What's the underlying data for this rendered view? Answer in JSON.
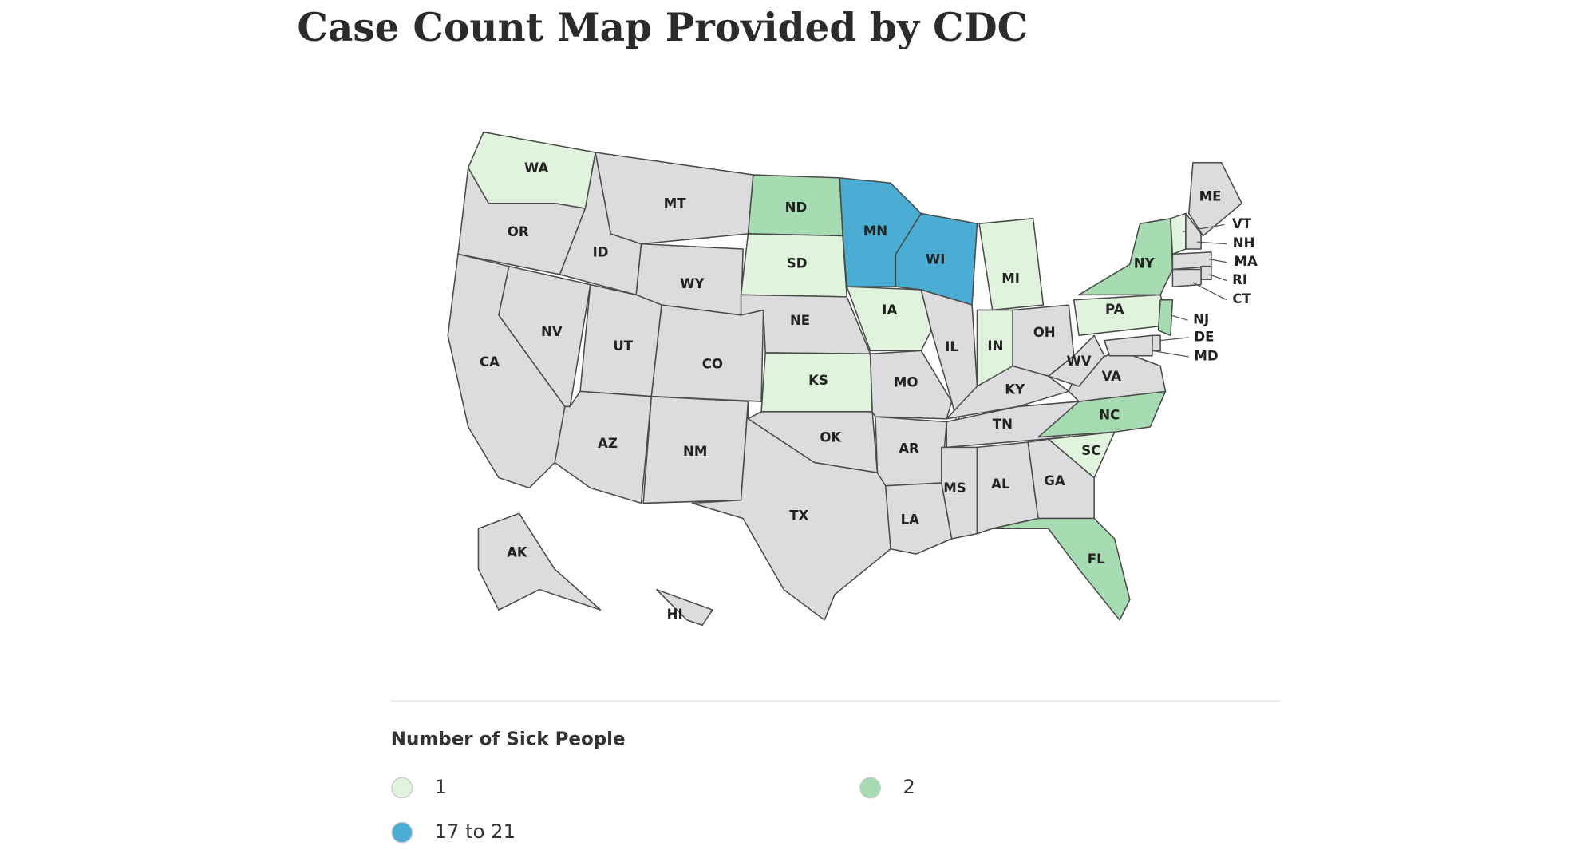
{
  "header": {
    "title": "Case Count Map Provided by CDC"
  },
  "map": {
    "no_data_color": "#dcdcdf",
    "states": [
      {
        "abbr": "WA",
        "legend": 0
      },
      {
        "abbr": "OR",
        "legend": null
      },
      {
        "abbr": "CA",
        "legend": null
      },
      {
        "abbr": "ID",
        "legend": null
      },
      {
        "abbr": "NV",
        "legend": null
      },
      {
        "abbr": "MT",
        "legend": null
      },
      {
        "abbr": "WY",
        "legend": null
      },
      {
        "abbr": "UT",
        "legend": null
      },
      {
        "abbr": "CO",
        "legend": null
      },
      {
        "abbr": "AZ",
        "legend": null
      },
      {
        "abbr": "NM",
        "legend": null
      },
      {
        "abbr": "ND",
        "legend": 1
      },
      {
        "abbr": "SD",
        "legend": 0
      },
      {
        "abbr": "NE",
        "legend": null
      },
      {
        "abbr": "KS",
        "legend": 0
      },
      {
        "abbr": "OK",
        "legend": null
      },
      {
        "abbr": "TX",
        "legend": null
      },
      {
        "abbr": "MN",
        "legend": 2
      },
      {
        "abbr": "IA",
        "legend": 0
      },
      {
        "abbr": "MO",
        "legend": null
      },
      {
        "abbr": "AR",
        "legend": null
      },
      {
        "abbr": "LA",
        "legend": null
      },
      {
        "abbr": "WI",
        "legend": 2
      },
      {
        "abbr": "IL",
        "legend": null
      },
      {
        "abbr": "MI",
        "legend": 0
      },
      {
        "abbr": "IN",
        "legend": 0
      },
      {
        "abbr": "OH",
        "legend": null
      },
      {
        "abbr": "KY",
        "legend": null
      },
      {
        "abbr": "TN",
        "legend": null
      },
      {
        "abbr": "MS",
        "legend": null
      },
      {
        "abbr": "AL",
        "legend": null
      },
      {
        "abbr": "GA",
        "legend": null
      },
      {
        "abbr": "FL",
        "legend": 1
      },
      {
        "abbr": "SC",
        "legend": 0
      },
      {
        "abbr": "NC",
        "legend": 1
      },
      {
        "abbr": "VA",
        "legend": null
      },
      {
        "abbr": "WV",
        "legend": null
      },
      {
        "abbr": "PA",
        "legend": 0
      },
      {
        "abbr": "NY",
        "legend": 1
      },
      {
        "abbr": "ME",
        "legend": null
      },
      {
        "abbr": "VT",
        "legend": 0
      },
      {
        "abbr": "NH",
        "legend": null
      },
      {
        "abbr": "MA",
        "legend": null
      },
      {
        "abbr": "RI",
        "legend": null
      },
      {
        "abbr": "CT",
        "legend": null
      },
      {
        "abbr": "NJ",
        "legend": 1
      },
      {
        "abbr": "DE",
        "legend": null
      },
      {
        "abbr": "MD",
        "legend": null
      },
      {
        "abbr": "AK",
        "legend": null
      },
      {
        "abbr": "HI",
        "legend": null
      }
    ]
  },
  "legend": {
    "title": "Number of Sick People",
    "items": [
      {
        "label": "1",
        "color": "#e0f3dc"
      },
      {
        "label": "2",
        "color": "#a7dbb2"
      },
      {
        "label": "17 to 21",
        "color": "#4badd3"
      }
    ]
  }
}
